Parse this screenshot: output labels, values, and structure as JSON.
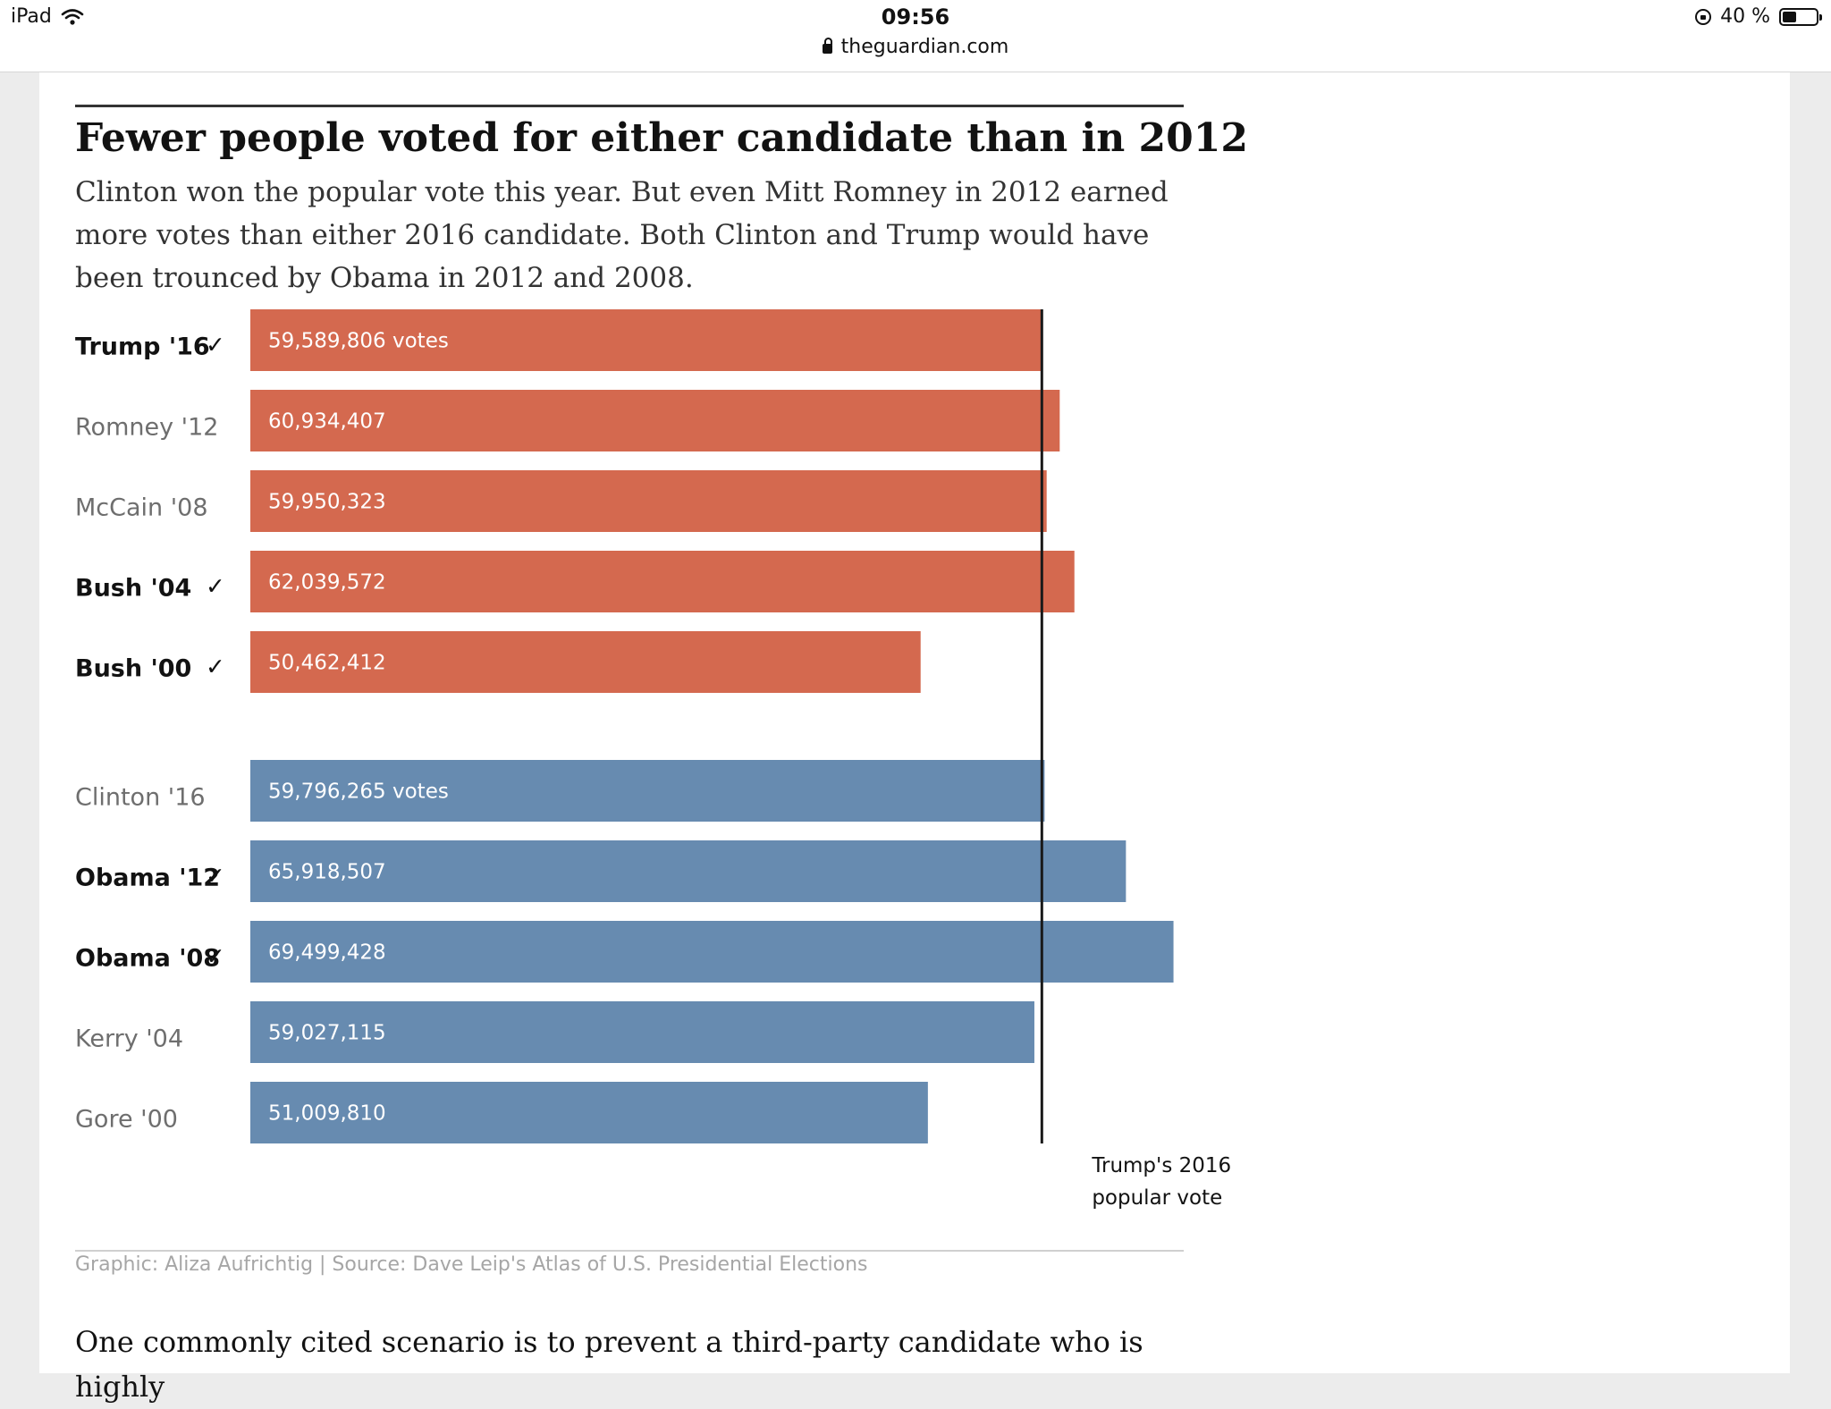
{
  "status_bar": {
    "device": "iPad",
    "time": "09:56",
    "url": "theguardian.com",
    "battery": "40 %"
  },
  "article": {
    "title": "Fewer people voted for either candidate than in 2012",
    "subtitle": "Clinton won the popular vote this year. But even Mitt Romney in 2012 earned more votes than either 2016 candidate. Both Clinton and Trump would have been trounced by Obama in 2012 and 2008.",
    "credit": "Graphic: Aliza Aufrichtig | Source: Dave Leip's Atlas of U.S. Presidential Elections",
    "body_text": "One commonly cited scenario is to prevent a third-party candidate who is highly"
  },
  "chart_data": {
    "type": "bar",
    "orientation": "horizontal",
    "title": "Fewer people voted for either candidate than in 2012",
    "xlim": [
      0,
      70000000
    ],
    "grid": false,
    "groups": [
      {
        "color": "#d4694f",
        "bars": [
          {
            "label": "Trump '16",
            "winner": true,
            "value": 59589806,
            "value_label": "59,589,806 votes"
          },
          {
            "label": "Romney '12",
            "winner": false,
            "value": 60934407,
            "value_label": "60,934,407"
          },
          {
            "label": "McCain '08",
            "winner": false,
            "value": 59950323,
            "value_label": "59,950,323"
          },
          {
            "label": "Bush '04",
            "winner": true,
            "value": 62039572,
            "value_label": "62,039,572"
          },
          {
            "label": "Bush '00",
            "winner": true,
            "value": 50462412,
            "value_label": "50,462,412"
          }
        ]
      },
      {
        "color": "#678bb0",
        "bars": [
          {
            "label": "Clinton '16",
            "winner": false,
            "value": 59796265,
            "value_label": "59,796,265 votes"
          },
          {
            "label": "Obama '12",
            "winner": true,
            "value": 65918507,
            "value_label": "65,918,507"
          },
          {
            "label": "Obama '08",
            "winner": true,
            "value": 69499428,
            "value_label": "69,499,428"
          },
          {
            "label": "Kerry '04",
            "winner": false,
            "value": 59027115,
            "value_label": "59,027,115"
          },
          {
            "label": "Gore '00",
            "winner": false,
            "value": 51009810,
            "value_label": "51,009,810"
          }
        ]
      }
    ],
    "reference_line": {
      "value": 59589806,
      "label_lines": [
        "Trump's 2016",
        "popular vote"
      ]
    },
    "winner_mark": "✓"
  }
}
